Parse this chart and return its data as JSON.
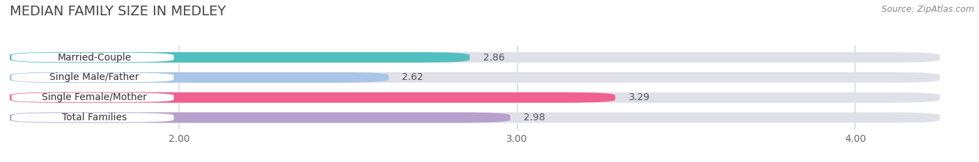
{
  "title": "MEDIAN FAMILY SIZE IN MEDLEY",
  "source": "Source: ZipAtlas.com",
  "categories": [
    "Married-Couple",
    "Single Male/Father",
    "Single Female/Mother",
    "Total Families"
  ],
  "values": [
    2.86,
    2.62,
    3.29,
    2.98
  ],
  "bar_colors": [
    "#52bfbf",
    "#a8c4e8",
    "#f06090",
    "#b8a0cc"
  ],
  "bar_bg_color": "#e0e0e8",
  "xlim_start": 1.5,
  "xlim_end": 4.25,
  "xmin": 1.5,
  "xticks": [
    2.0,
    3.0,
    4.0
  ],
  "xtick_labels": [
    "2.00",
    "3.00",
    "4.00"
  ],
  "title_fontsize": 14,
  "source_fontsize": 9,
  "label_fontsize": 10,
  "value_fontsize": 10,
  "bar_height": 0.52,
  "background_color": "#ffffff",
  "grid_color": "#d8d8e8",
  "label_bg_color": "#ffffff",
  "title_color": "#444444",
  "source_color": "#888888",
  "value_color": "#555555",
  "label_color": "#333333"
}
